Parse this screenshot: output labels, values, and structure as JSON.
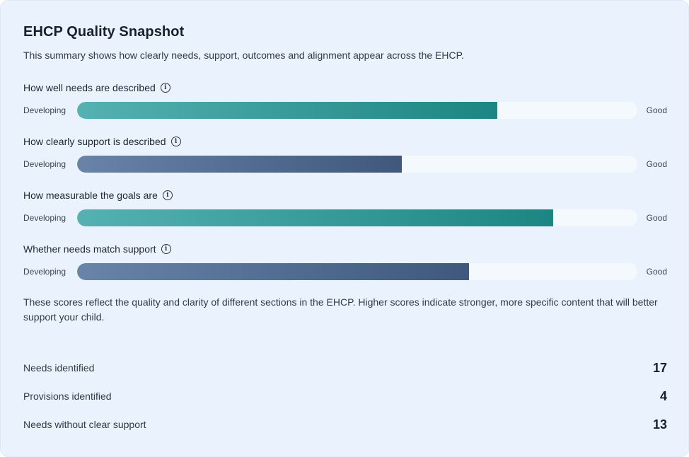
{
  "card": {
    "title": "EHCP Quality Snapshot",
    "subtitle": "This summary shows how clearly needs, support, outcomes and alignment appear across the EHCP."
  },
  "scale": {
    "low": "Developing",
    "high": "Good"
  },
  "metrics": [
    {
      "label": "How well needs are described",
      "level": 0.75,
      "style": "teal",
      "icon": "info-icon"
    },
    {
      "label": "How clearly support is described",
      "level": 0.58,
      "style": "slate",
      "icon": "info-icon"
    },
    {
      "label": "How measurable the goals are",
      "level": 0.85,
      "style": "teal",
      "icon": "info-icon"
    },
    {
      "label": "Whether needs match support",
      "level": 0.7,
      "style": "slate",
      "icon": "info-icon"
    }
  ],
  "note": "These scores reflect the quality and clarity of different sections in the EHCP. Higher scores indicate stronger, more specific content that will better support your child.",
  "stats": [
    {
      "label": "Needs identified",
      "value": "17"
    },
    {
      "label": "Provisions identified",
      "value": "4"
    },
    {
      "label": "Needs without clear support",
      "value": "13"
    }
  ],
  "colors": {
    "teal_start": "#55b1b2",
    "teal_end": "#1c8682",
    "slate_start": "#6983a9",
    "slate_end": "#3f587c",
    "track": "#f4f9fe",
    "background": "#eaf3fd"
  }
}
